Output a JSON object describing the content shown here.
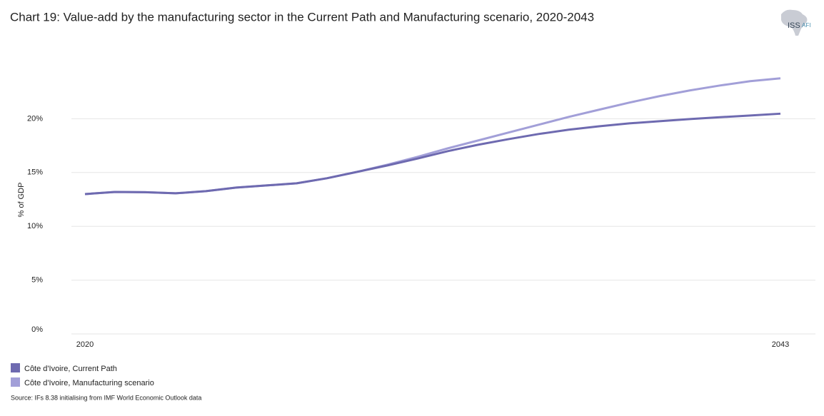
{
  "chart_data": {
    "type": "line",
    "title": "Chart 19: Value-add by the manufacturing sector in the Current Path and Manufacturing scenario, 2020-2043",
    "y_label": "% of GDP",
    "source": "Source: IFs 8.38 initialising from IMF World Economic Outlook data",
    "x": [
      2020,
      2021,
      2022,
      2023,
      2024,
      2025,
      2026,
      2027,
      2028,
      2029,
      2030,
      2031,
      2032,
      2033,
      2034,
      2035,
      2036,
      2037,
      2038,
      2039,
      2040,
      2041,
      2042,
      2043
    ],
    "xlim": [
      2020,
      2043
    ],
    "xticks": [
      2020,
      2043
    ],
    "ylim": [
      0,
      25
    ],
    "yticks": [
      {
        "value": 0,
        "label": "0%"
      },
      {
        "value": 5,
        "label": "5%"
      },
      {
        "value": 10,
        "label": "10%"
      },
      {
        "value": 15,
        "label": "15%"
      },
      {
        "value": 20,
        "label": "20%"
      }
    ],
    "grid": true,
    "legend": "bottom-left",
    "series": [
      {
        "name": "Côte d'Ivoire, Current Path",
        "color": "#6e6ab0",
        "values": [
          13.0,
          13.2,
          13.17,
          13.07,
          13.27,
          13.6,
          13.8,
          14.0,
          14.47,
          15.06,
          15.66,
          16.3,
          16.99,
          17.58,
          18.1,
          18.58,
          18.98,
          19.3,
          19.57,
          19.77,
          19.97,
          20.14,
          20.3,
          20.47
        ]
      },
      {
        "name": "Côte d'Ivoire, Manufacturing scenario",
        "color": "#a29fd8",
        "values": [
          13.0,
          13.2,
          13.17,
          13.07,
          13.27,
          13.6,
          13.8,
          14.0,
          14.47,
          15.06,
          15.73,
          16.46,
          17.25,
          17.98,
          18.71,
          19.44,
          20.17,
          20.84,
          21.5,
          22.1,
          22.63,
          23.09,
          23.49,
          23.76
        ]
      }
    ]
  },
  "logo": {
    "main": "ISS",
    "sub": "AFI"
  }
}
